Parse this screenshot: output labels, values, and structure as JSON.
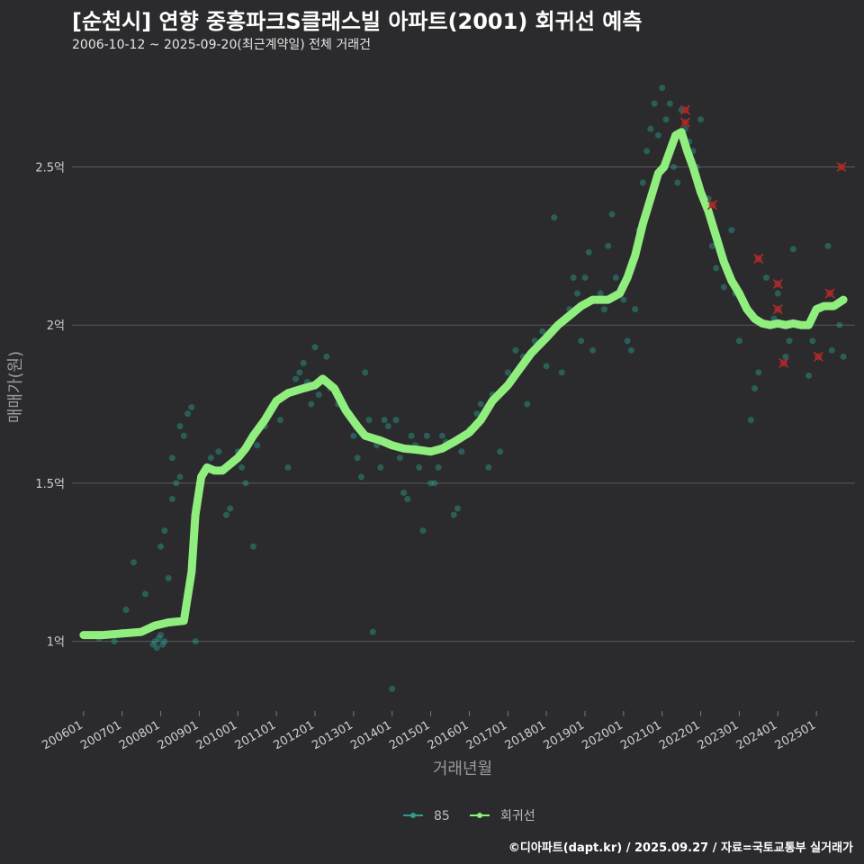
{
  "title": "[순천시] 연향 중흥파크S클래스빌 아파트(2001) 회귀선 예측",
  "subtitle": "2006-10-12 ~ 2025-09-20(최근계약일) 전체 거래건",
  "footer": "©디아파트(dapt.kr) / 2025.09.27 / 자료=국토교통부 실거래가",
  "colors": {
    "background": "#2b2b2d",
    "grid": "#5a5a5a",
    "scatter": "#2a9d8f",
    "regression": "#90ee7e",
    "outlier": "#b02a2a"
  },
  "chart_data": {
    "type": "line",
    "xlabel": "거래년월",
    "ylabel": "매매가(원)",
    "ylim": [
      0.78,
      2.8
    ],
    "xlim": [
      2005.7,
      2026.0
    ],
    "y_ticks": [
      {
        "value": 1.0,
        "label": "1억"
      },
      {
        "value": 1.5,
        "label": "1.5억"
      },
      {
        "value": 2.0,
        "label": "2억"
      },
      {
        "value": 2.5,
        "label": "2.5억"
      }
    ],
    "x_ticks": [
      "200601",
      "200701",
      "200801",
      "200901",
      "201001",
      "201101",
      "201201",
      "201301",
      "201401",
      "201501",
      "201601",
      "201701",
      "201801",
      "201901",
      "202001",
      "202101",
      "202201",
      "202301",
      "202401",
      "202501"
    ],
    "legend": [
      {
        "name": "85",
        "color": "#2a9d8f"
      },
      {
        "name": "회귀선",
        "color": "#90ee7e"
      }
    ],
    "legend_position": "bottom",
    "grid": true,
    "series": [
      {
        "name": "회귀선",
        "kind": "line",
        "points": [
          [
            2006.0,
            1.02
          ],
          [
            2006.5,
            1.02
          ],
          [
            2007.0,
            1.025
          ],
          [
            2007.5,
            1.03
          ],
          [
            2007.85,
            1.05
          ],
          [
            2008.2,
            1.06
          ],
          [
            2008.6,
            1.065
          ],
          [
            2008.8,
            1.22
          ],
          [
            2008.9,
            1.4
          ],
          [
            2009.05,
            1.52
          ],
          [
            2009.2,
            1.55
          ],
          [
            2009.4,
            1.54
          ],
          [
            2009.6,
            1.54
          ],
          [
            2009.8,
            1.56
          ],
          [
            2010.0,
            1.58
          ],
          [
            2010.2,
            1.61
          ],
          [
            2010.4,
            1.65
          ],
          [
            2010.7,
            1.7
          ],
          [
            2011.0,
            1.76
          ],
          [
            2011.3,
            1.785
          ],
          [
            2011.7,
            1.8
          ],
          [
            2012.0,
            1.81
          ],
          [
            2012.2,
            1.83
          ],
          [
            2012.5,
            1.8
          ],
          [
            2012.8,
            1.73
          ],
          [
            2013.1,
            1.68
          ],
          [
            2013.3,
            1.65
          ],
          [
            2013.7,
            1.635
          ],
          [
            2014.0,
            1.62
          ],
          [
            2014.3,
            1.61
          ],
          [
            2014.7,
            1.605
          ],
          [
            2015.0,
            1.6
          ],
          [
            2015.3,
            1.61
          ],
          [
            2015.6,
            1.63
          ],
          [
            2016.0,
            1.66
          ],
          [
            2016.3,
            1.7
          ],
          [
            2016.6,
            1.76
          ],
          [
            2017.0,
            1.81
          ],
          [
            2017.3,
            1.86
          ],
          [
            2017.6,
            1.91
          ],
          [
            2018.0,
            1.96
          ],
          [
            2018.3,
            2.0
          ],
          [
            2018.6,
            2.03
          ],
          [
            2018.9,
            2.06
          ],
          [
            2019.2,
            2.08
          ],
          [
            2019.6,
            2.08
          ],
          [
            2019.9,
            2.1
          ],
          [
            2020.1,
            2.15
          ],
          [
            2020.3,
            2.22
          ],
          [
            2020.5,
            2.32
          ],
          [
            2020.7,
            2.4
          ],
          [
            2020.9,
            2.48
          ],
          [
            2021.05,
            2.5
          ],
          [
            2021.2,
            2.55
          ],
          [
            2021.35,
            2.6
          ],
          [
            2021.5,
            2.61
          ],
          [
            2021.65,
            2.55
          ],
          [
            2021.8,
            2.5
          ],
          [
            2022.0,
            2.42
          ],
          [
            2022.2,
            2.36
          ],
          [
            2022.4,
            2.28
          ],
          [
            2022.6,
            2.2
          ],
          [
            2022.8,
            2.14
          ],
          [
            2023.0,
            2.1
          ],
          [
            2023.2,
            2.05
          ],
          [
            2023.4,
            2.02
          ],
          [
            2023.6,
            2.005
          ],
          [
            2023.8,
            2.0
          ],
          [
            2024.0,
            2.005
          ],
          [
            2024.2,
            2.0
          ],
          [
            2024.4,
            2.005
          ],
          [
            2024.6,
            2.0
          ],
          [
            2024.8,
            2.0
          ],
          [
            2025.0,
            2.05
          ],
          [
            2025.2,
            2.06
          ],
          [
            2025.45,
            2.06
          ],
          [
            2025.7,
            2.08
          ]
        ]
      },
      {
        "name": "85",
        "kind": "scatter",
        "points": [
          [
            2006.1,
            1.02
          ],
          [
            2006.4,
            1.01
          ],
          [
            2006.8,
            1.0
          ],
          [
            2007.0,
            1.03
          ],
          [
            2007.1,
            1.1
          ],
          [
            2007.3,
            1.25
          ],
          [
            2007.6,
            1.15
          ],
          [
            2007.8,
            0.99
          ],
          [
            2007.85,
            1.0
          ],
          [
            2007.9,
            0.98
          ],
          [
            2007.95,
            1.01
          ],
          [
            2008.0,
            1.02
          ],
          [
            2008.05,
            0.99
          ],
          [
            2008.1,
            1.0
          ],
          [
            2008.0,
            1.3
          ],
          [
            2008.1,
            1.35
          ],
          [
            2008.2,
            1.2
          ],
          [
            2008.3,
            1.58
          ],
          [
            2008.4,
            1.5
          ],
          [
            2008.5,
            1.68
          ],
          [
            2008.6,
            1.65
          ],
          [
            2008.7,
            1.72
          ],
          [
            2008.8,
            1.74
          ],
          [
            2008.5,
            1.52
          ],
          [
            2008.3,
            1.45
          ],
          [
            2008.9,
            1.0
          ],
          [
            2009.3,
            1.58
          ],
          [
            2009.5,
            1.6
          ],
          [
            2009.7,
            1.4
          ],
          [
            2009.8,
            1.42
          ],
          [
            2010.0,
            1.6
          ],
          [
            2010.1,
            1.55
          ],
          [
            2010.2,
            1.5
          ],
          [
            2010.4,
            1.3
          ],
          [
            2010.5,
            1.62
          ],
          [
            2010.7,
            1.68
          ],
          [
            2010.8,
            1.72
          ],
          [
            2011.0,
            1.76
          ],
          [
            2011.1,
            1.7
          ],
          [
            2011.3,
            1.55
          ],
          [
            2011.5,
            1.83
          ],
          [
            2011.6,
            1.85
          ],
          [
            2011.7,
            1.88
          ],
          [
            2011.8,
            1.82
          ],
          [
            2011.9,
            1.75
          ],
          [
            2012.0,
            1.93
          ],
          [
            2012.1,
            1.78
          ],
          [
            2012.3,
            1.9
          ],
          [
            2012.4,
            1.8
          ],
          [
            2012.6,
            1.75
          ],
          [
            2012.9,
            1.72
          ],
          [
            2013.0,
            1.65
          ],
          [
            2013.1,
            1.58
          ],
          [
            2013.2,
            1.52
          ],
          [
            2013.3,
            1.85
          ],
          [
            2013.4,
            1.7
          ],
          [
            2013.5,
            1.03
          ],
          [
            2013.6,
            1.62
          ],
          [
            2013.7,
            1.55
          ],
          [
            2013.8,
            1.7
          ],
          [
            2013.9,
            1.68
          ],
          [
            2014.0,
            0.85
          ],
          [
            2014.1,
            1.7
          ],
          [
            2014.2,
            1.58
          ],
          [
            2014.3,
            1.47
          ],
          [
            2014.4,
            1.45
          ],
          [
            2014.5,
            1.65
          ],
          [
            2014.6,
            1.62
          ],
          [
            2014.7,
            1.55
          ],
          [
            2014.8,
            1.35
          ],
          [
            2014.9,
            1.65
          ],
          [
            2015.0,
            1.5
          ],
          [
            2015.1,
            1.5
          ],
          [
            2015.2,
            1.55
          ],
          [
            2015.3,
            1.65
          ],
          [
            2015.4,
            1.63
          ],
          [
            2015.5,
            1.62
          ],
          [
            2015.6,
            1.4
          ],
          [
            2015.7,
            1.42
          ],
          [
            2015.8,
            1.6
          ],
          [
            2016.0,
            1.67
          ],
          [
            2016.2,
            1.72
          ],
          [
            2016.3,
            1.75
          ],
          [
            2016.5,
            1.55
          ],
          [
            2016.6,
            1.78
          ],
          [
            2016.8,
            1.6
          ],
          [
            2016.9,
            1.8
          ],
          [
            2017.0,
            1.85
          ],
          [
            2017.2,
            1.92
          ],
          [
            2017.4,
            1.9
          ],
          [
            2017.5,
            1.75
          ],
          [
            2017.7,
            1.95
          ],
          [
            2017.9,
            1.98
          ],
          [
            2018.0,
            1.87
          ],
          [
            2018.2,
            2.34
          ],
          [
            2018.4,
            1.85
          ],
          [
            2018.6,
            2.05
          ],
          [
            2018.7,
            2.15
          ],
          [
            2018.8,
            2.1
          ],
          [
            2018.9,
            1.95
          ],
          [
            2019.0,
            2.15
          ],
          [
            2019.1,
            2.23
          ],
          [
            2019.2,
            1.92
          ],
          [
            2019.4,
            2.1
          ],
          [
            2019.5,
            2.05
          ],
          [
            2019.6,
            2.25
          ],
          [
            2019.7,
            2.35
          ],
          [
            2019.8,
            2.15
          ],
          [
            2020.0,
            2.08
          ],
          [
            2020.1,
            1.95
          ],
          [
            2020.2,
            1.92
          ],
          [
            2020.3,
            2.05
          ],
          [
            2020.4,
            2.3
          ],
          [
            2020.5,
            2.45
          ],
          [
            2020.6,
            2.55
          ],
          [
            2020.7,
            2.62
          ],
          [
            2020.8,
            2.7
          ],
          [
            2020.9,
            2.6
          ],
          [
            2021.0,
            2.75
          ],
          [
            2021.1,
            2.65
          ],
          [
            2021.2,
            2.7
          ],
          [
            2021.3,
            2.5
          ],
          [
            2021.4,
            2.45
          ],
          [
            2021.5,
            2.68
          ],
          [
            2021.6,
            2.62
          ],
          [
            2021.7,
            2.58
          ],
          [
            2021.8,
            2.55
          ],
          [
            2021.9,
            2.5
          ],
          [
            2022.0,
            2.65
          ],
          [
            2022.2,
            2.4
          ],
          [
            2022.3,
            2.25
          ],
          [
            2022.4,
            2.18
          ],
          [
            2022.6,
            2.12
          ],
          [
            2022.8,
            2.3
          ],
          [
            2022.9,
            2.1
          ],
          [
            2023.0,
            1.95
          ],
          [
            2023.1,
            2.08
          ],
          [
            2023.3,
            1.7
          ],
          [
            2023.4,
            1.8
          ],
          [
            2023.5,
            1.85
          ],
          [
            2023.7,
            2.15
          ],
          [
            2023.9,
            2.02
          ],
          [
            2024.0,
            2.1
          ],
          [
            2024.2,
            1.9
          ],
          [
            2024.3,
            1.95
          ],
          [
            2024.4,
            2.24
          ],
          [
            2024.6,
            2.0
          ],
          [
            2024.8,
            1.84
          ],
          [
            2024.9,
            1.95
          ],
          [
            2025.1,
            2.05
          ],
          [
            2025.3,
            2.25
          ],
          [
            2025.4,
            1.92
          ],
          [
            2025.6,
            2.0
          ],
          [
            2025.7,
            1.9
          ]
        ]
      },
      {
        "name": "outlier",
        "kind": "marker",
        "points": [
          [
            2021.6,
            2.68
          ],
          [
            2021.6,
            2.64
          ],
          [
            2022.3,
            2.38
          ],
          [
            2023.5,
            2.21
          ],
          [
            2024.0,
            2.13
          ],
          [
            2024.0,
            2.05
          ],
          [
            2024.15,
            1.88
          ],
          [
            2025.05,
            1.9
          ],
          [
            2025.35,
            2.1
          ],
          [
            2025.65,
            2.5
          ]
        ]
      }
    ]
  }
}
